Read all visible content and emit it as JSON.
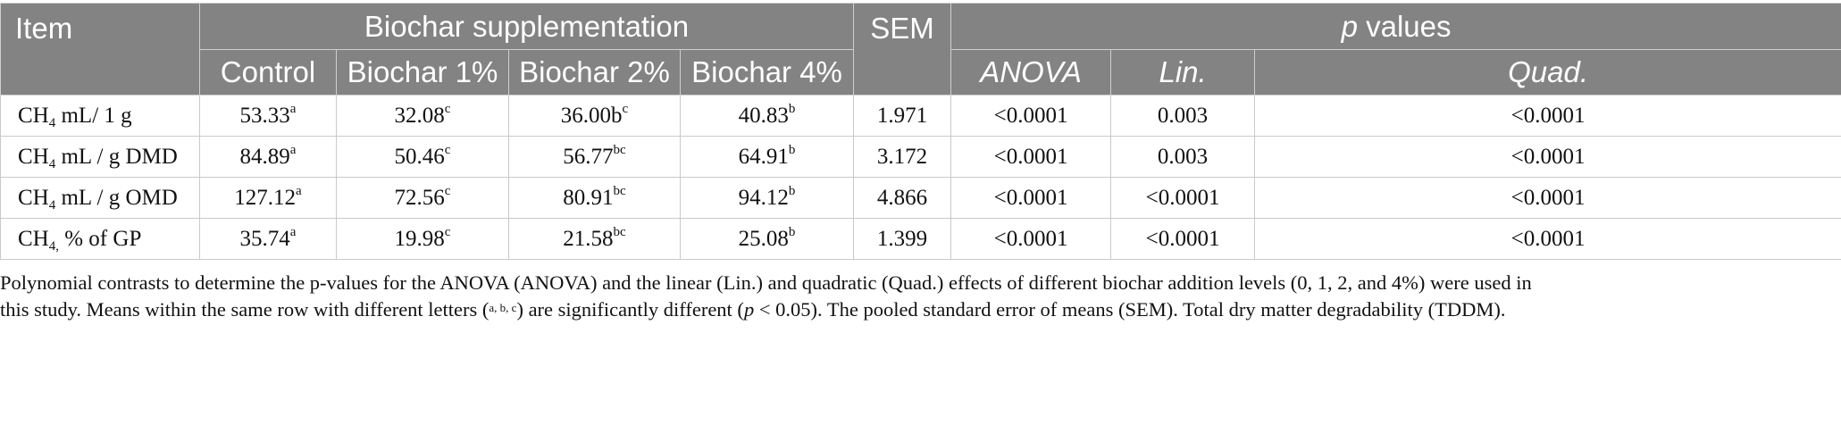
{
  "table": {
    "headers": {
      "item": "Item",
      "group": "Biochar supplementation",
      "sem": "SEM",
      "p_prefix": "p",
      "p_suffix": " values",
      "groups": [
        "Control",
        "Biochar 1%",
        "Biochar 2%",
        "Biochar 4%"
      ],
      "tests": [
        "ANOVA",
        "Lin.",
        "Quad."
      ]
    },
    "rows": [
      {
        "label": {
          "pre": "CH",
          "sub": "4",
          "post": " mL/ 1 g"
        },
        "values": [
          {
            "v": "53.33",
            "sup": "a"
          },
          {
            "v": "32.08",
            "sup": "c"
          },
          {
            "v": "36.00b",
            "sup": "c"
          },
          {
            "v": "40.83",
            "sup": "b"
          }
        ],
        "sem": "1.971",
        "p": [
          "<0.0001",
          "0.003",
          "<0.0001"
        ]
      },
      {
        "label": {
          "pre": "CH",
          "sub": "4",
          "post": " mL / g DMD"
        },
        "values": [
          {
            "v": "84.89",
            "sup": "a"
          },
          {
            "v": "50.46",
            "sup": "c"
          },
          {
            "v": "56.77",
            "sup": "bc"
          },
          {
            "v": "64.91",
            "sup": "b"
          }
        ],
        "sem": "3.172",
        "p": [
          "<0.0001",
          "0.003",
          "<0.0001"
        ]
      },
      {
        "label": {
          "pre": "CH",
          "sub": "4",
          "post": " mL / g OMD"
        },
        "values": [
          {
            "v": "127.12",
            "sup": "a"
          },
          {
            "v": "72.56",
            "sup": "c"
          },
          {
            "v": "80.91",
            "sup": "bc"
          },
          {
            "v": "94.12",
            "sup": "b"
          }
        ],
        "sem": "4.866",
        "p": [
          "<0.0001",
          "<0.0001",
          "<0.0001"
        ]
      },
      {
        "label": {
          "pre": "CH",
          "sub": "4,",
          "post": " % of GP"
        },
        "values": [
          {
            "v": "35.74",
            "sup": "a"
          },
          {
            "v": "19.98",
            "sup": "c"
          },
          {
            "v": "21.58",
            "sup": "bc"
          },
          {
            "v": "25.08",
            "sup": "b"
          }
        ],
        "sem": "1.399",
        "p": [
          "<0.0001",
          "<0.0001",
          "<0.0001"
        ]
      }
    ]
  },
  "footnote": {
    "line1": "Polynomial contrasts to determine the p-values for the ANOVA (ANOVA) and the linear (Lin.) and quadratic (Quad.) effects of different biochar addition levels (0, 1, 2, and 4%) were used in",
    "line2a": "this study. Means within the same row with different letters (",
    "line2_sup": "a, b, c",
    "line2b": ") are significantly different (",
    "line2_p": "p",
    "line2c": " < 0.05). The pooled standard error of means (SEM). Total dry matter degradability (TDDM)."
  }
}
